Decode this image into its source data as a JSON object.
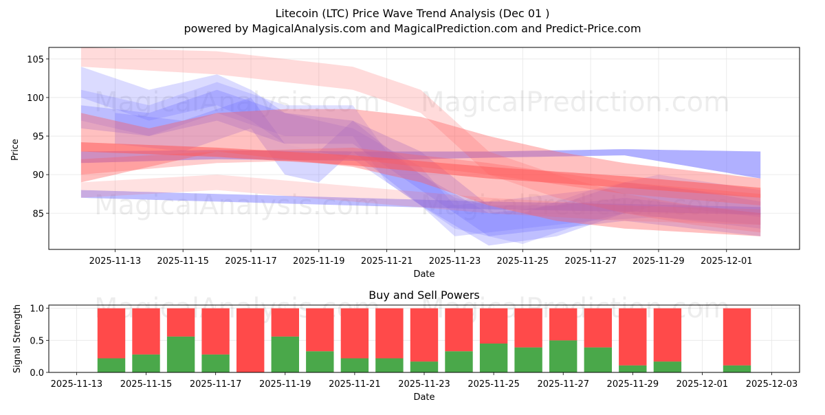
{
  "title_line1": "Litecoin (LTC) Price Wave Trend Analysis (Dec 01 )",
  "title_line2": "powered by MagicalAnalysis.com and MagicalPrediction.com and Predict-Price.com",
  "watermarks": [
    "MagicalAnalysis.com",
    "MagicalPrediction.com"
  ],
  "colors": {
    "blue": "#6f6fff",
    "red": "#ff5a5a",
    "buy": "#4aa84a",
    "sell": "#ff4a4a"
  },
  "chart_data": [
    {
      "type": "area",
      "title": "",
      "xlabel": "Date",
      "ylabel": "Price",
      "x_ticks": [
        "2025-11-13",
        "2025-11-15",
        "2025-11-17",
        "2025-11-19",
        "2025-11-21",
        "2025-11-23",
        "2025-11-25",
        "2025-11-27",
        "2025-11-29",
        "2025-12-01"
      ],
      "x_tick_days": [
        1,
        3,
        5,
        7,
        9,
        11,
        13,
        15,
        17,
        19
      ],
      "xlim_days": [
        -0.95,
        21.15
      ],
      "y_ticks": [
        85,
        90,
        95,
        100,
        105
      ],
      "ylim": [
        80.3,
        106.5
      ],
      "grid": true,
      "series": [
        {
          "color": "blue",
          "alpha": 0.45,
          "lower": [
            [
              0,
              87
            ],
            [
              4,
              86.5
            ],
            [
              8,
              86
            ],
            [
              12,
              85.5
            ],
            [
              16,
              85.2
            ],
            [
              20,
              84.8
            ]
          ],
          "upper": [
            [
              0,
              88
            ],
            [
              4,
              87.5
            ],
            [
              8,
              87
            ],
            [
              12,
              86.5
            ],
            [
              16,
              86.2
            ],
            [
              20,
              85.8
            ]
          ]
        },
        {
          "color": "blue",
          "alpha": 0.55,
          "lower": [
            [
              0,
              91.5
            ],
            [
              4,
              92
            ],
            [
              8,
              91.8
            ],
            [
              12,
              92.2
            ],
            [
              16,
              92.5
            ],
            [
              20,
              89.5
            ]
          ],
          "upper": [
            [
              0,
              93
            ],
            [
              4,
              93.2
            ],
            [
              8,
              93
            ],
            [
              12,
              93
            ],
            [
              16,
              93.3
            ],
            [
              20,
              93
            ]
          ]
        },
        {
          "color": "blue",
          "alpha": 0.3,
          "lower": [
            [
              0,
              96
            ],
            [
              2,
              95
            ],
            [
              4,
              97
            ],
            [
              6,
              94
            ],
            [
              8,
              94
            ],
            [
              10,
              88
            ],
            [
              12,
              82
            ],
            [
              14,
              83
            ],
            [
              16,
              84
            ],
            [
              18,
              83
            ],
            [
              20,
              82
            ]
          ],
          "upper": [
            [
              0,
              99
            ],
            [
              2,
              98
            ],
            [
              4,
              101
            ],
            [
              6,
              98
            ],
            [
              8,
              97
            ],
            [
              10,
              93
            ],
            [
              12,
              86
            ],
            [
              14,
              86
            ],
            [
              16,
              87
            ],
            [
              18,
              86
            ],
            [
              20,
              85
            ]
          ]
        },
        {
          "color": "blue",
          "alpha": 0.25,
          "lower": [
            [
              0,
              100
            ],
            [
              2,
              97
            ],
            [
              4,
              99
            ],
            [
              5,
              97
            ],
            [
              6,
              94
            ],
            [
              8,
              92
            ],
            [
              10,
              86
            ],
            [
              11,
              82
            ],
            [
              13,
              83
            ],
            [
              15,
              84
            ],
            [
              17,
              84.5
            ],
            [
              20,
              83.5
            ]
          ],
          "upper": [
            [
              0,
              104
            ],
            [
              2,
              101
            ],
            [
              4,
              103
            ],
            [
              5,
              101
            ],
            [
              6,
              98
            ],
            [
              8,
              96
            ],
            [
              10,
              91
            ],
            [
              11,
              86
            ],
            [
              13,
              87
            ],
            [
              15,
              88
            ],
            [
              17,
              88.5
            ],
            [
              20,
              87
            ]
          ]
        },
        {
          "color": "blue",
          "alpha": 0.28,
          "lower": [
            [
              1,
              94
            ],
            [
              3,
              93
            ],
            [
              5,
              96
            ],
            [
              6,
              90
            ],
            [
              7,
              89
            ],
            [
              8,
              93
            ],
            [
              10,
              86
            ],
            [
              12,
              80.8
            ],
            [
              14,
              82
            ],
            [
              16,
              85
            ],
            [
              18,
              84
            ],
            [
              20,
              83
            ]
          ],
          "upper": [
            [
              1,
              98
            ],
            [
              3,
              97
            ],
            [
              5,
              100
            ],
            [
              6,
              94
            ],
            [
              7,
              93
            ],
            [
              8,
              97
            ],
            [
              10,
              90
            ],
            [
              12,
              85
            ],
            [
              14,
              86
            ],
            [
              16,
              89
            ],
            [
              18,
              88
            ],
            [
              20,
              86.5
            ]
          ]
        },
        {
          "color": "blue",
          "alpha": 0.22,
          "lower": [
            [
              0,
              97
            ],
            [
              2,
              95
            ],
            [
              4,
              98
            ],
            [
              6,
              95
            ],
            [
              8,
              95
            ],
            [
              9,
              89
            ],
            [
              11,
              83
            ],
            [
              13,
              81
            ],
            [
              15,
              84
            ],
            [
              17,
              86
            ],
            [
              20,
              84.5
            ]
          ],
          "upper": [
            [
              0,
              101
            ],
            [
              2,
              99
            ],
            [
              4,
              102
            ],
            [
              6,
              99
            ],
            [
              8,
              99
            ],
            [
              9,
              93
            ],
            [
              11,
              87
            ],
            [
              13,
              85
            ],
            [
              15,
              88
            ],
            [
              17,
              90
            ],
            [
              20,
              88
            ]
          ]
        },
        {
          "color": "red",
          "alpha": 0.38,
          "lower": [
            [
              0,
              89
            ],
            [
              2,
              91
            ],
            [
              4,
              93
            ],
            [
              6,
              92
            ],
            [
              8,
              91
            ],
            [
              10,
              89
            ],
            [
              12,
              86
            ],
            [
              14,
              84
            ],
            [
              16,
              83
            ],
            [
              18,
              82.5
            ],
            [
              20,
              82
            ]
          ],
          "upper": [
            [
              0,
              98
            ],
            [
              2,
              96
            ],
            [
              4,
              98
            ],
            [
              6,
              98.5
            ],
            [
              8,
              98.5
            ],
            [
              10,
              97.5
            ],
            [
              12,
              95
            ],
            [
              14,
              93
            ],
            [
              16,
              91.5
            ],
            [
              18,
              90.5
            ],
            [
              20,
              89.5
            ]
          ]
        },
        {
          "color": "red",
          "alpha": 0.55,
          "lower": [
            [
              0,
              93
            ],
            [
              4,
              92.3
            ],
            [
              8,
              91.2
            ],
            [
              12,
              89.5
            ],
            [
              16,
              88.3
            ],
            [
              20,
              87
            ]
          ],
          "upper": [
            [
              0,
              94.2
            ],
            [
              4,
              93.5
            ],
            [
              8,
              92.5
            ],
            [
              12,
              91
            ],
            [
              16,
              89.8
            ],
            [
              20,
              88.3
            ]
          ]
        },
        {
          "color": "red",
          "alpha": 0.3,
          "lower": [
            [
              0,
              90
            ],
            [
              4,
              91.5
            ],
            [
              8,
              92
            ],
            [
              12,
              90
            ],
            [
              16,
              87.5
            ],
            [
              20,
              86
            ]
          ],
          "upper": [
            [
              0,
              92
            ],
            [
              4,
              93
            ],
            [
              8,
              93.5
            ],
            [
              12,
              91.5
            ],
            [
              16,
              89
            ],
            [
              20,
              87.5
            ]
          ]
        },
        {
          "color": "red",
          "alpha": 0.22,
          "lower": [
            [
              0,
              104
            ],
            [
              4,
              103
            ],
            [
              8,
              101
            ],
            [
              10,
              98
            ],
            [
              12,
              90
            ],
            [
              14,
              87
            ],
            [
              16,
              85
            ],
            [
              18,
              83.5
            ],
            [
              20,
              82.5
            ]
          ],
          "upper": [
            [
              0,
              106.5
            ],
            [
              4,
              106
            ],
            [
              8,
              104
            ],
            [
              10,
              101
            ],
            [
              12,
              93
            ],
            [
              14,
              90
            ],
            [
              16,
              87.5
            ],
            [
              18,
              86
            ],
            [
              20,
              85
            ]
          ]
        },
        {
          "color": "red",
          "alpha": 0.18,
          "lower": [
            [
              0,
              87
            ],
            [
              4,
              88
            ],
            [
              8,
              86.5
            ],
            [
              12,
              85
            ],
            [
              16,
              84
            ],
            [
              20,
              83.5
            ]
          ],
          "upper": [
            [
              0,
              89
            ],
            [
              4,
              90
            ],
            [
              8,
              88.5
            ],
            [
              12,
              87
            ],
            [
              16,
              86
            ],
            [
              20,
              85.5
            ]
          ]
        }
      ]
    },
    {
      "type": "bar",
      "title": "Buy and Sell Powers",
      "xlabel": "Date",
      "ylabel": "Signal Strength",
      "x_ticks": [
        "2025-11-13",
        "2025-11-15",
        "2025-11-17",
        "2025-11-19",
        "2025-11-21",
        "2025-11-23",
        "2025-11-25",
        "2025-11-27",
        "2025-11-29",
        "2025-12-01",
        "2025-12-03"
      ],
      "x_tick_days": [
        0,
        2,
        4,
        6,
        8,
        10,
        12,
        14,
        16,
        18,
        20
      ],
      "xlim_days": [
        -0.8,
        20.8
      ],
      "y_ticks": [
        "0.0",
        "0.5",
        "1.0"
      ],
      "ylim": [
        0,
        1.05
      ],
      "grid": true,
      "bar_days": [
        1,
        2,
        3,
        4,
        5,
        6,
        7,
        8,
        9,
        10,
        11,
        12,
        13,
        14,
        15,
        16,
        17,
        19
      ],
      "buy": [
        0.22,
        0.28,
        0.56,
        0.28,
        0.0,
        0.56,
        0.33,
        0.22,
        0.22,
        0.17,
        0.33,
        0.45,
        0.39,
        0.5,
        0.39,
        0.11,
        0.17,
        0.11
      ],
      "sell": [
        0.78,
        0.72,
        0.44,
        0.72,
        1.0,
        0.44,
        0.67,
        0.78,
        0.78,
        0.83,
        0.67,
        0.55,
        0.61,
        0.5,
        0.61,
        0.89,
        0.83,
        0.89
      ]
    }
  ]
}
